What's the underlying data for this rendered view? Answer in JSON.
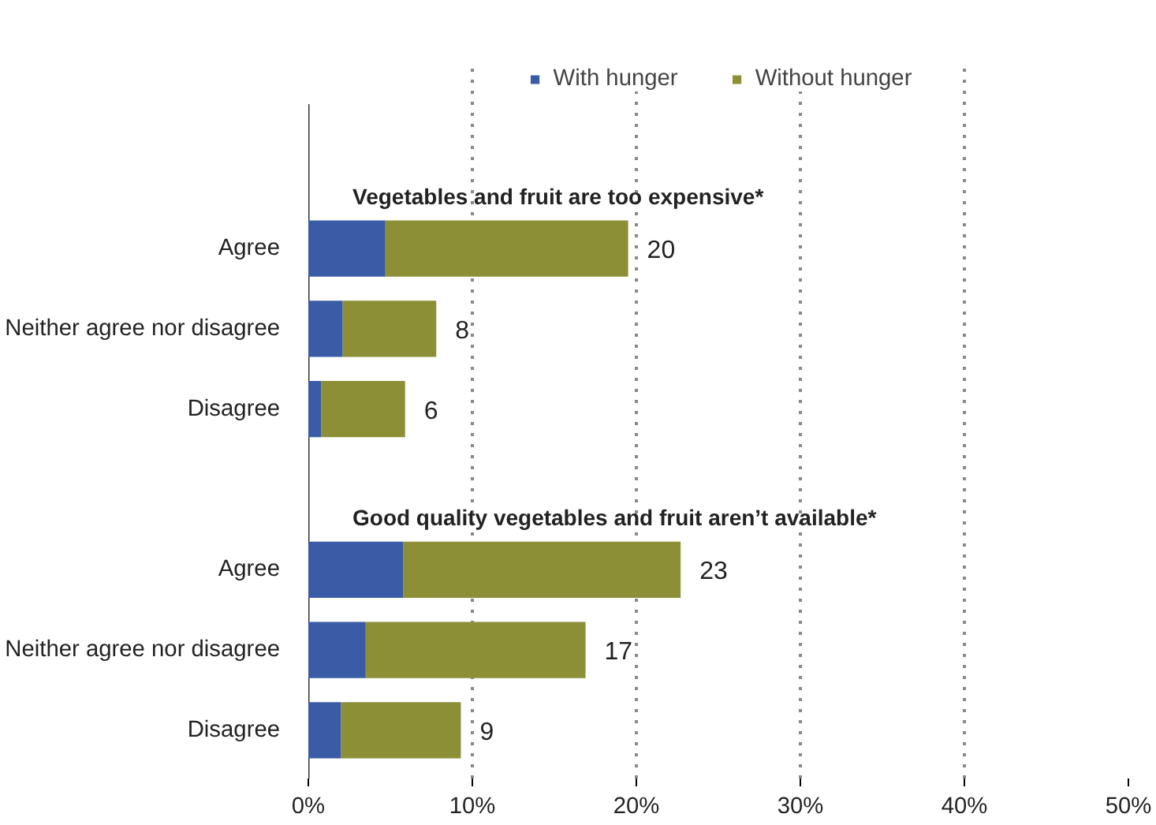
{
  "chart_data": {
    "type": "bar",
    "orientation": "horizontal",
    "stacked": true,
    "categories": [
      "Agree",
      "Neither agree nor disagree",
      "Disagree",
      null,
      "Agree",
      "Neither agree nor disagree",
      "Disagree"
    ],
    "series": [
      {
        "name": "With hunger",
        "color": "#3a5ba5",
        "values": [
          4.7,
          2.1,
          0.8,
          null,
          5.8,
          3.5,
          2.0
        ]
      },
      {
        "name": "Without hunger",
        "color": "#8c8f36",
        "values": [
          14.8,
          5.7,
          5.1,
          null,
          16.9,
          13.4,
          7.3
        ]
      }
    ],
    "totals": [
      "20",
      "8",
      "6",
      null,
      "23",
      "17",
      "9"
    ],
    "annotations": [
      "Vegetables and fruit are too expensive*",
      "Good quality vegetables and fruit aren’t available*"
    ],
    "xlim": [
      0,
      50
    ],
    "xticks": [
      {
        "value": 0,
        "label": "0%"
      },
      {
        "value": 10,
        "label": "10%"
      },
      {
        "value": 20,
        "label": "20%"
      },
      {
        "value": 30,
        "label": "30%"
      },
      {
        "value": 40,
        "label": "40%"
      },
      {
        "value": 50,
        "label": "50%"
      }
    ],
    "grid": "x",
    "legend": "top"
  }
}
